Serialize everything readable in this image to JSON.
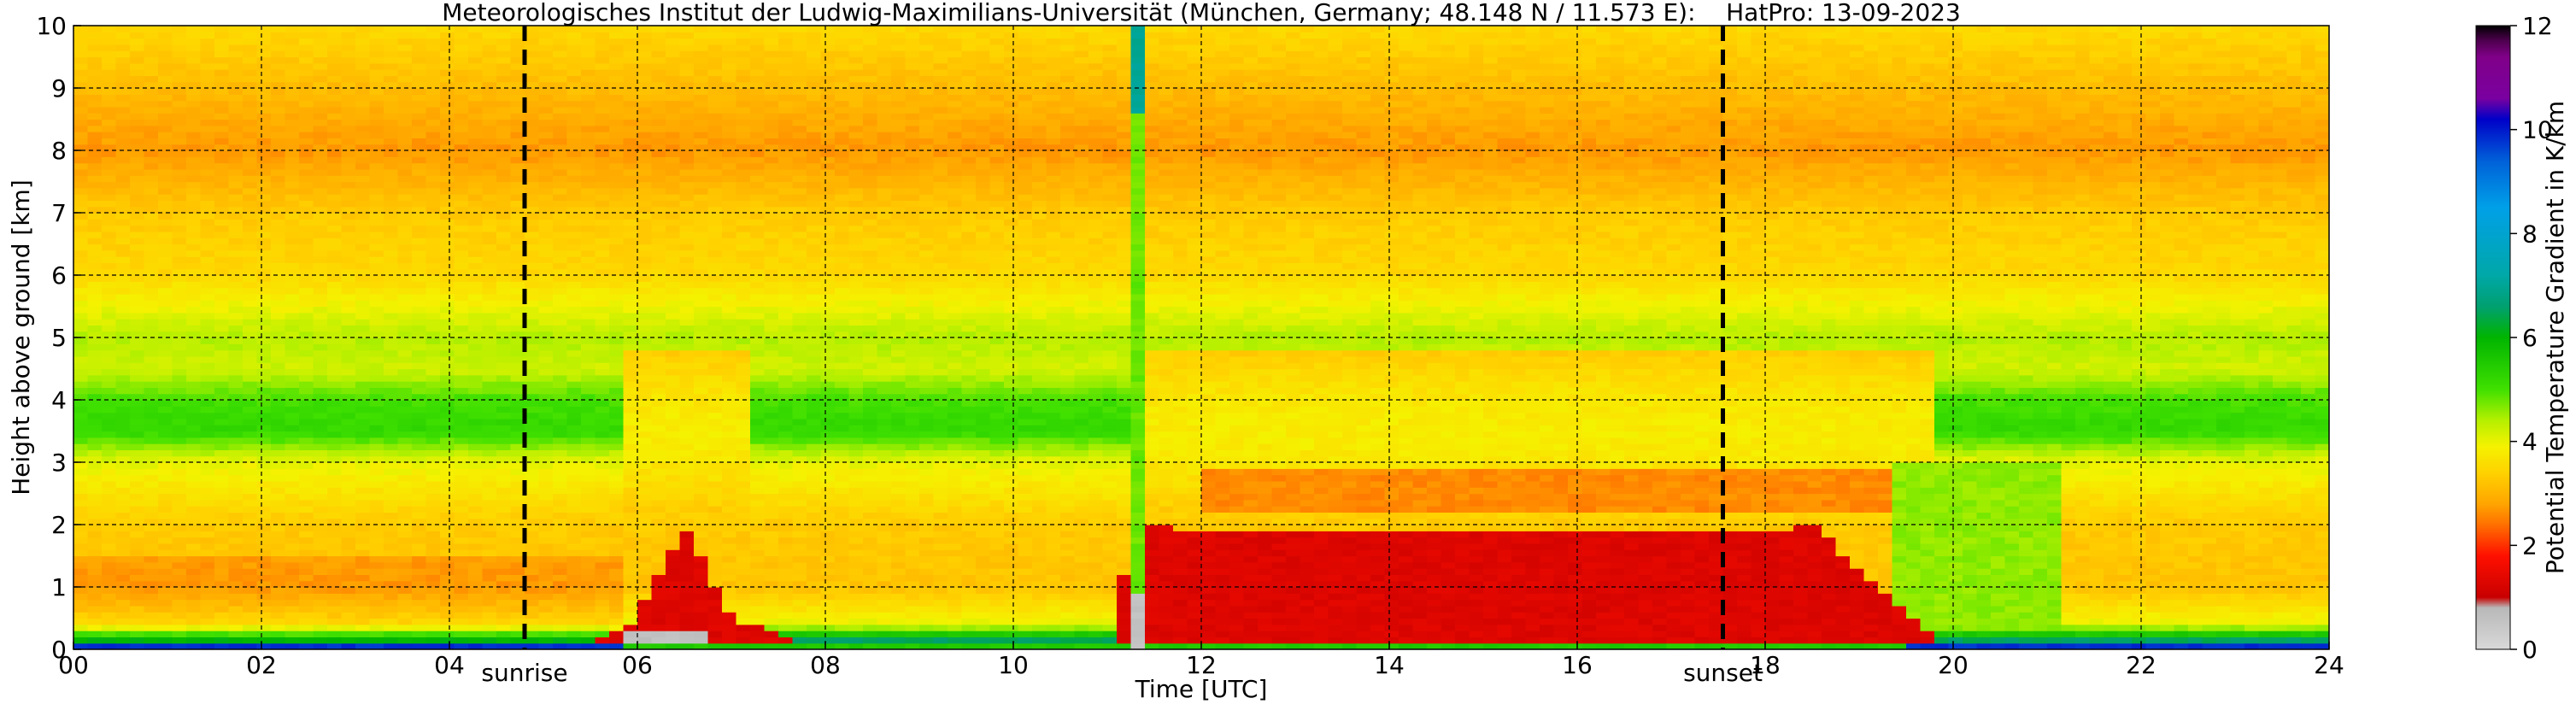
{
  "chart_data": {
    "type": "heatmap",
    "title": "Meteorologisches Institut der Ludwig-Maximilians-Universität (München, Germany; 48.148 N / 11.573 E):    HatPro: 13-09-2023",
    "xlabel": "Time [UTC]",
    "ylabel": "Height above ground [km]",
    "xlim": [
      0,
      24
    ],
    "ylim": [
      0,
      10
    ],
    "x_ticks": [
      0,
      2,
      4,
      6,
      8,
      10,
      12,
      14,
      16,
      18,
      20,
      22,
      24
    ],
    "x_tick_labels": [
      "00",
      "02",
      "04",
      "06",
      "08",
      "10",
      "12",
      "14",
      "16",
      "18",
      "20",
      "22",
      "24"
    ],
    "y_ticks": [
      0,
      1,
      2,
      3,
      4,
      5,
      6,
      7,
      8,
      9,
      10
    ],
    "y_tick_labels": [
      "0",
      "1",
      "2",
      "3",
      "4",
      "5",
      "6",
      "7",
      "8",
      "9",
      "10"
    ],
    "grid": true,
    "colorbar": {
      "label": "Potential Temperature Gradient in K/km",
      "range": [
        0,
        12
      ],
      "ticks": [
        0,
        2,
        4,
        6,
        8,
        10,
        12
      ],
      "tick_labels": [
        "0",
        "2",
        "4",
        "6",
        "8",
        "10",
        "12"
      ],
      "stops": [
        {
          "value": 0,
          "color": "#d9d9d9"
        },
        {
          "value": 0.8,
          "color": "#b8b8b8"
        },
        {
          "value": 1.0,
          "color": "#c80000"
        },
        {
          "value": 1.8,
          "color": "#ff1000"
        },
        {
          "value": 2.4,
          "color": "#ff7000"
        },
        {
          "value": 2.8,
          "color": "#ffa500"
        },
        {
          "value": 3.4,
          "color": "#ffd200"
        },
        {
          "value": 3.9,
          "color": "#f5f200"
        },
        {
          "value": 4.4,
          "color": "#b6f000"
        },
        {
          "value": 5.0,
          "color": "#40e000"
        },
        {
          "value": 6.0,
          "color": "#00b400"
        },
        {
          "value": 6.6,
          "color": "#00a070"
        },
        {
          "value": 7.2,
          "color": "#00a8a8"
        },
        {
          "value": 8.5,
          "color": "#00a0e8"
        },
        {
          "value": 9.4,
          "color": "#0060d8"
        },
        {
          "value": 10.2,
          "color": "#0000c8"
        },
        {
          "value": 10.6,
          "color": "#7a00a0"
        },
        {
          "value": 11.4,
          "color": "#800088"
        },
        {
          "value": 11.7,
          "color": "#500050"
        },
        {
          "value": 12,
          "color": "#000000"
        }
      ]
    },
    "markers": [
      {
        "label": "sunrise",
        "x": 4.8
      },
      {
        "label": "sunset",
        "x": 17.55
      }
    ],
    "data_summary": {
      "x_hours": [
        0,
        1,
        2,
        3,
        4,
        5,
        5.9,
        6.5,
        7,
        8,
        9,
        10,
        11,
        11.3,
        12,
        13,
        14,
        15,
        16,
        17,
        17.6,
        18,
        18.5,
        19,
        19.5,
        20,
        21,
        22,
        23,
        24
      ],
      "mixed_layer_top_km": [
        0,
        0,
        0,
        0,
        0,
        0,
        0.3,
        2.0,
        0.5,
        0,
        0,
        0,
        0,
        2.0,
        1.9,
        1.9,
        1.9,
        1.9,
        1.9,
        1.9,
        1.9,
        1.9,
        2.0,
        1.3,
        0.6,
        0,
        0,
        0,
        0,
        0
      ],
      "levels_km": [
        0,
        0.15,
        0.4,
        1,
        2,
        3,
        3.5,
        4,
        4.5,
        5,
        6,
        7,
        8,
        9,
        10
      ],
      "typical_gradient_K_per_km": [
        10.5,
        6.5,
        4.0,
        3.2,
        3.3,
        4.0,
        5.2,
        5.0,
        4.2,
        4.4,
        3.5,
        3.3,
        2.7,
        3.1,
        3.5
      ]
    }
  }
}
